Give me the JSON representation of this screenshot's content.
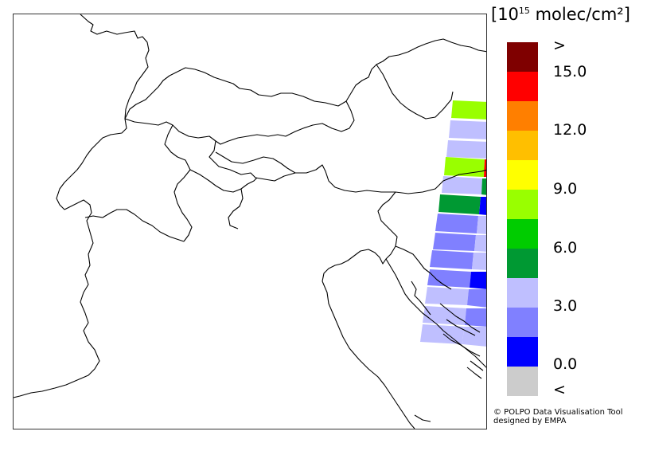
{
  "map": {
    "colorbar": {
      "unit_prefix": "[10",
      "unit_exponent": "15",
      "unit_suffix": " molec/cm²]",
      "colors": [
        "#7f0000",
        "#ff0000",
        "#ff7f00",
        "#ffbf00",
        "#ffff00",
        "#99ff00",
        "#00cc00",
        "#009933",
        "#bfbfff",
        "#8080ff",
        "#0000ff",
        "#cccccc"
      ],
      "labels": [
        ">",
        "15.0",
        "12.0",
        "9.0",
        "6.0",
        "3.0",
        "0.0",
        "<"
      ]
    },
    "credit": {
      "line1": "© POLPO Data Visualisation Tool",
      "line2": "designed by EMPA"
    }
  }
}
